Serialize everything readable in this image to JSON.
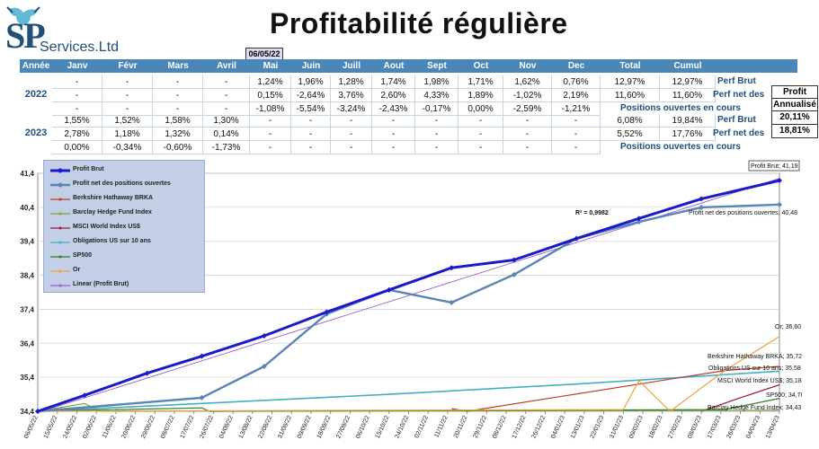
{
  "header": {
    "brand_sp": "SP",
    "brand_rest": "Services.Ltd",
    "title": "Profitabilité régulière",
    "date": "06/05/22"
  },
  "table": {
    "headers": [
      "Année",
      "Janv",
      "Févr",
      "Mars",
      "Avril",
      "Mai",
      "Juin",
      "Juill",
      "Aout",
      "Sept",
      "Oct",
      "Nov",
      "Dec",
      "Total",
      "Cumul"
    ],
    "years": [
      {
        "year": "2022",
        "rows": [
          [
            "-",
            "-",
            "-",
            "-",
            "1,24%",
            "1,96%",
            "1,28%",
            "1,74%",
            "1,98%",
            "1,71%",
            "1,62%",
            "0,76%",
            "12,97%",
            "12,97%"
          ],
          [
            "-",
            "-",
            "-",
            "-",
            "0,15%",
            "-2,64%",
            "3,76%",
            "2,60%",
            "4,33%",
            "1,89%",
            "-1,02%",
            "2,19%",
            "11,60%",
            "11,60%"
          ],
          [
            "-",
            "-",
            "-",
            "-",
            "-1,08%",
            "-5,54%",
            "-3,24%",
            "-2,43%",
            "-0,17%",
            "0,00%",
            "-2,59%",
            "-1,21%",
            "",
            ""
          ]
        ]
      },
      {
        "year": "2023",
        "rows": [
          [
            "1,55%",
            "1,52%",
            "1,58%",
            "1,30%",
            "-",
            "-",
            "-",
            "-",
            "-",
            "-",
            "-",
            "-",
            "6,08%",
            "19,84%"
          ],
          [
            "2,78%",
            "1,18%",
            "1,32%",
            "0,14%",
            "-",
            "-",
            "-",
            "-",
            "-",
            "-",
            "-",
            "-",
            "5,52%",
            "17,76%"
          ],
          [
            "0,00%",
            "-0,34%",
            "-0,60%",
            "-1,73%",
            "-",
            "-",
            "-",
            "-",
            "-",
            "-",
            "-",
            "-",
            "",
            ""
          ]
        ]
      }
    ],
    "row_labels": [
      "Perf Brut",
      "Perf net des",
      "Positions ouvertes en cours",
      "Perf Brut",
      "Perf net des",
      "Positions ouvertes en cours"
    ],
    "annualized": {
      "label_1": "Profit",
      "label_2": "Annualisé",
      "value_1": "20,11%",
      "value_2": "18,81%"
    }
  },
  "chart_data": {
    "type": "line",
    "x": [
      "06/05/22",
      "15/05/22",
      "24/05/22",
      "02/06/22",
      "11/06/22",
      "20/06/22",
      "29/06/22",
      "08/07/22",
      "17/07/22",
      "26/07/22",
      "04/08/22",
      "13/08/22",
      "22/08/22",
      "31/08/22",
      "09/09/22",
      "18/09/22",
      "27/09/22",
      "06/10/22",
      "15/10/22",
      "24/10/22",
      "02/11/22",
      "11/11/22",
      "20/11/22",
      "29/11/22",
      "08/12/22",
      "17/12/22",
      "26/12/22",
      "04/01/23",
      "13/01/23",
      "22/01/23",
      "31/01/23",
      "09/02/23",
      "18/02/23",
      "27/02/23",
      "08/03/23",
      "17/03/23",
      "26/03/23",
      "04/04/23",
      "13/04/23"
    ],
    "ylim": [
      34.4,
      41.4
    ],
    "yticks": [
      "34,4",
      "35,4",
      "36,4",
      "37,4",
      "38,4",
      "39,4",
      "40,4",
      "41,4"
    ],
    "ytick_values": [
      34.4,
      35.4,
      36.4,
      37.4,
      38.4,
      39.4,
      40.4,
      41.4
    ],
    "series": [
      {
        "name": "Profit Brut",
        "color": "#1a1acc",
        "points": [
          [
            0,
            34.4
          ],
          [
            6,
            34.87
          ],
          [
            14,
            35.52
          ],
          [
            21,
            36.02
          ],
          [
            29,
            36.62
          ],
          [
            37,
            37.32
          ],
          [
            45,
            37.97
          ],
          [
            53,
            38.62
          ],
          [
            61,
            38.85
          ],
          [
            69,
            39.48
          ],
          [
            77,
            40.07
          ],
          [
            85,
            40.65
          ],
          [
            95,
            41.19
          ]
        ]
      },
      {
        "name": "Profit net des positions ouvertes",
        "color": "#5a84b8",
        "points": [
          [
            0,
            34.4
          ],
          [
            21,
            34.8
          ],
          [
            29,
            35.72
          ],
          [
            37,
            37.26
          ],
          [
            45,
            37.97
          ],
          [
            53,
            37.6
          ],
          [
            61,
            38.42
          ],
          [
            69,
            39.48
          ],
          [
            77,
            39.97
          ],
          [
            85,
            40.4
          ],
          [
            95,
            40.48
          ]
        ]
      },
      {
        "name": "Berkshire Hathaway BRKA",
        "color": "#c0392b",
        "points": [
          [
            53,
            34.48
          ],
          [
            55,
            34.4
          ],
          [
            88,
            35.6
          ],
          [
            95,
            35.72
          ]
        ]
      },
      {
        "name": "Barclay Hedge Fund Index",
        "color": "#7aa33a",
        "points": [
          [
            0,
            34.4
          ],
          [
            6,
            34.63
          ],
          [
            8,
            34.4
          ],
          [
            88,
            34.42
          ],
          [
            95,
            34.43
          ]
        ]
      },
      {
        "name": "MSCI World Index US$",
        "color": "#9b1c3a",
        "points": [
          [
            85,
            34.4
          ],
          [
            90,
            34.8
          ],
          [
            95,
            35.18
          ]
        ]
      },
      {
        "name": "Obligations US sur 10 ans",
        "color": "#3fb0c4",
        "points": [
          [
            0,
            34.4
          ],
          [
            21,
            34.63
          ],
          [
            45,
            34.9
          ],
          [
            69,
            35.2
          ],
          [
            95,
            35.58
          ]
        ]
      },
      {
        "name": "SP500",
        "color": "#2e7d32",
        "points": [
          [
            0,
            34.4
          ],
          [
            21,
            34.5
          ],
          [
            22,
            34.4
          ],
          [
            88,
            34.45
          ],
          [
            95,
            34.78
          ]
        ]
      },
      {
        "name": "Or",
        "color": "#f0a040",
        "points": [
          [
            0,
            34.4
          ],
          [
            75,
            34.45
          ],
          [
            77,
            35.3
          ],
          [
            81,
            34.4
          ],
          [
            88,
            35.6
          ],
          [
            95,
            36.6
          ]
        ]
      },
      {
        "name": "Linear (Profit Brut)",
        "color": "#9a5fd0",
        "points": [
          [
            0,
            34.36
          ],
          [
            95,
            41.25
          ]
        ]
      }
    ],
    "annotations": [
      {
        "text": "Profit Brut; 41,19"
      },
      {
        "text": "Profit net des positions ouvertes; 40,48"
      },
      {
        "text": "Or; 36,60"
      },
      {
        "text": "Berkshire Hathaway BRKA; 35,72"
      },
      {
        "text": "Obligations US sur 10 ans; 35,58"
      },
      {
        "text": "MSCI World Index US$; 35,18"
      },
      {
        "text": "SP500; 34,78"
      },
      {
        "text": "Barclay Hedge Fund Index; 34,43"
      },
      {
        "text": "R² = 0,9982"
      }
    ],
    "grid": true,
    "legend_position": "top-left"
  }
}
